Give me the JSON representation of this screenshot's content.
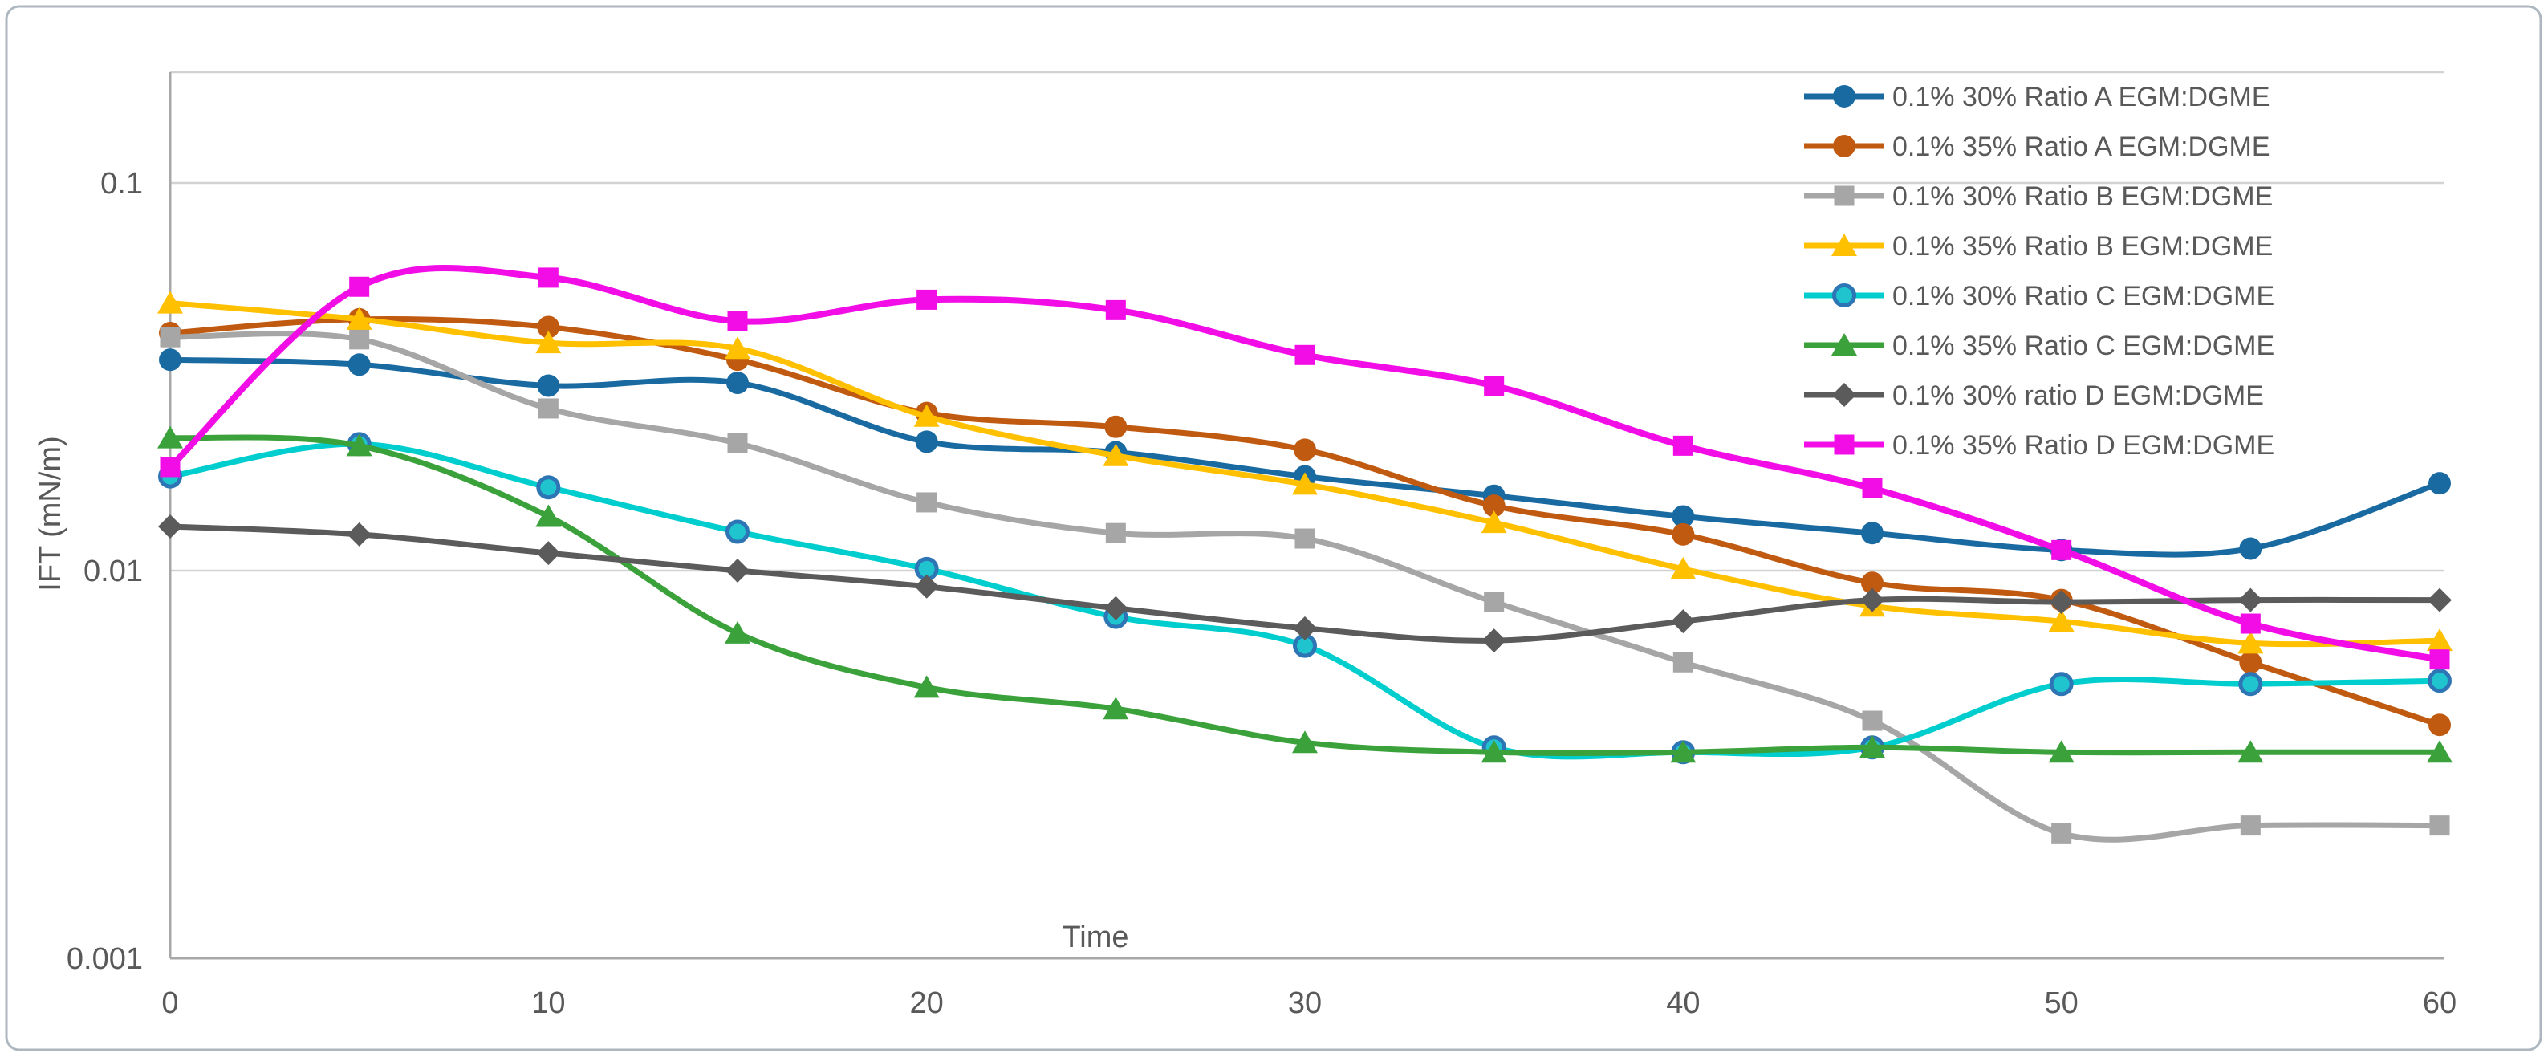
{
  "frame": {
    "border_color": "#aeb6bf",
    "background": "#ffffff"
  },
  "chart_data": {
    "type": "line",
    "yscale": "log",
    "ylim": [
      0.001,
      0.2
    ],
    "xlim": [
      0,
      60
    ],
    "grid": "horizontal",
    "gridline_values": [
      0.1,
      0.01
    ],
    "title": "",
    "xlabel": "Time",
    "ylabel": "IFT (mN/m)",
    "x_ticks": [
      "0",
      "10",
      "20",
      "30",
      "40",
      "50",
      "60"
    ],
    "y_ticks": [
      "0.1",
      "0.01",
      "0.001"
    ],
    "legend_position": "top-right",
    "x": [
      0,
      5,
      10,
      15,
      20,
      25,
      30,
      35,
      40,
      45,
      50,
      55,
      60
    ],
    "series": [
      {
        "name": "0.1% 30% Ratio A EGM:DGME",
        "color": "#1a6aa2",
        "marker": "circle",
        "values": [
          0.035,
          0.034,
          0.03,
          0.0305,
          0.0215,
          0.0202,
          0.0175,
          0.0156,
          0.0138,
          0.0125,
          0.0113,
          0.0114,
          0.0168
        ]
      },
      {
        "name": "0.1% 35% Ratio A EGM:DGME",
        "color": "#c05a11",
        "marker": "circle",
        "values": [
          0.041,
          0.0445,
          0.0425,
          0.035,
          0.0255,
          0.0235,
          0.0205,
          0.0147,
          0.0124,
          0.0093,
          0.0084,
          0.0058,
          0.004
        ]
      },
      {
        "name": "0.1% 30% Ratio B EGM:DGME",
        "color": "#a6a6a6",
        "marker": "square",
        "values": [
          0.04,
          0.0395,
          0.0262,
          0.0213,
          0.015,
          0.0125,
          0.0121,
          0.0083,
          0.0058,
          0.0041,
          0.0021,
          0.0022,
          0.0022
        ]
      },
      {
        "name": "0.1% 35% Ratio B EGM:DGME",
        "color": "#ffc000",
        "marker": "triangle",
        "values": [
          0.049,
          0.0445,
          0.0387,
          0.0374,
          0.025,
          0.0198,
          0.0167,
          0.0133,
          0.0101,
          0.0081,
          0.0074,
          0.0065,
          0.0066
        ]
      },
      {
        "name": "0.1% 30% Ratio C EGM:DGME",
        "color": "#00cdcd",
        "marker": "ring",
        "marker_fill": "#1fc4ce",
        "marker_stroke": "#2e75b6",
        "values": [
          0.0175,
          0.0212,
          0.0164,
          0.0126,
          0.0101,
          0.0076,
          0.0064,
          0.0035,
          0.0034,
          0.0035,
          0.0051,
          0.0051,
          0.0052
        ]
      },
      {
        "name": "0.1% 35% Ratio C EGM:DGME",
        "color": "#3ba23b",
        "marker": "triangle",
        "values": [
          0.022,
          0.021,
          0.0138,
          0.0069,
          0.005,
          0.0044,
          0.0036,
          0.0034,
          0.0034,
          0.0035,
          0.0034,
          0.0034,
          0.0034
        ]
      },
      {
        "name": "0.1% 30% ratio D EGM:DGME",
        "color": "#5b5b5b",
        "marker": "diamond",
        "values": [
          0.013,
          0.0124,
          0.0111,
          0.01,
          0.0091,
          0.008,
          0.0071,
          0.0066,
          0.0074,
          0.0084,
          0.0083,
          0.0084,
          0.0084
        ]
      },
      {
        "name": "0.1% 35% Ratio D EGM:DGME",
        "color": "#f20de7",
        "marker": "square",
        "values": [
          0.0185,
          0.054,
          0.057,
          0.044,
          0.05,
          0.047,
          0.036,
          0.03,
          0.021,
          0.0163,
          0.0113,
          0.0073,
          0.0059
        ]
      }
    ]
  },
  "style": {
    "text_color": "#595959",
    "gridline_color": "#d2d2d2",
    "axis_color": "#a8a8a8",
    "tick_font_size": 38,
    "legend_font_size": 34
  }
}
